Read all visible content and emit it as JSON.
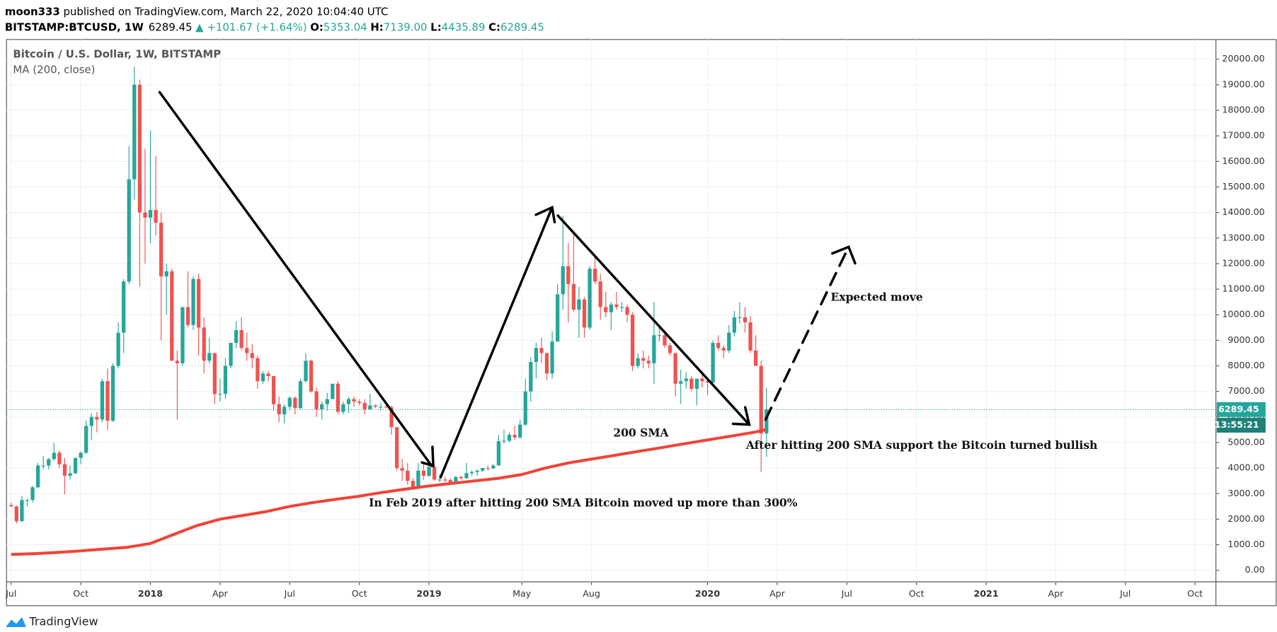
{
  "header": {
    "publisher": "moon333",
    "published": "published on TradingView.com, March 22, 2020 10:04:40 UTC",
    "symbol": "BITSTAMP:BTCUSD, 1W",
    "last": "6289.45",
    "change": "▲ +101.67 (+1.64%)",
    "ohlc": [
      {
        "label": "O:",
        "value": "5353.04"
      },
      {
        "label": "H:",
        "value": "7139.00"
      },
      {
        "label": "L:",
        "value": "4435.89"
      },
      {
        "label": "C:",
        "value": "6289.45"
      }
    ]
  },
  "footer": {
    "brand": "TradingView"
  },
  "chart_data": {
    "type": "candlestick",
    "title": "Bitcoin / U.S. Dollar, 1W, BITSTAMP",
    "indicator": "MA (200, close)",
    "up_color": "#26a69a",
    "down_color": "#ef5350",
    "grid": true,
    "xlim": [
      -0.2,
      51.9
    ],
    "xticks": [
      {
        "value": 0,
        "label": "Jul"
      },
      {
        "value": 3,
        "label": "Oct"
      },
      {
        "value": 6,
        "label": "2018"
      },
      {
        "value": 9,
        "label": "Apr"
      },
      {
        "value": 12,
        "label": "Jul"
      },
      {
        "value": 15,
        "label": "Oct"
      },
      {
        "value": 18,
        "label": "2019"
      },
      {
        "value": 22,
        "label": "May"
      },
      {
        "value": 25,
        "label": "Aug"
      },
      {
        "value": 30,
        "label": "2020"
      },
      {
        "value": 33,
        "label": "Apr"
      },
      {
        "value": 36,
        "label": "Jul"
      },
      {
        "value": 39,
        "label": "Oct"
      },
      {
        "value": 42,
        "label": "2021"
      },
      {
        "value": 45,
        "label": "Apr"
      },
      {
        "value": 48,
        "label": "Jul"
      },
      {
        "value": 51,
        "label": "Oct"
      }
    ],
    "ylim": [
      -450,
      20770
    ],
    "yticks": [
      {
        "value": 0,
        "label": "0.00"
      },
      {
        "value": 1000,
        "label": "1000.00"
      },
      {
        "value": 2000,
        "label": "2000.00"
      },
      {
        "value": 3000,
        "label": "3000.00"
      },
      {
        "value": 4000,
        "label": "4000.00"
      },
      {
        "value": 5000,
        "label": "5000.00"
      },
      {
        "value": 6000,
        "label": "6000.00"
      },
      {
        "value": 7000,
        "label": "7000.00"
      },
      {
        "value": 8000,
        "label": "8000.00"
      },
      {
        "value": 9000,
        "label": "9000.00"
      },
      {
        "value": 10000,
        "label": "10000.00"
      },
      {
        "value": 11000,
        "label": "11000.00"
      },
      {
        "value": 12000,
        "label": "12000.00"
      },
      {
        "value": 13000,
        "label": "13000.00"
      },
      {
        "value": 14000,
        "label": "14000.00"
      },
      {
        "value": 15000,
        "label": "15000.00"
      },
      {
        "value": 16000,
        "label": "16000.00"
      },
      {
        "value": 17000,
        "label": "17000.00"
      },
      {
        "value": 18000,
        "label": "18000.00"
      },
      {
        "value": 19000,
        "label": "19000.00"
      },
      {
        "value": 20000,
        "label": "20000.00"
      }
    ],
    "last_price": 6289.45,
    "countdown": "13:55:21",
    "ohlc": [
      [
        2550,
        2650,
        2480,
        2500
      ],
      [
        2500,
        2530,
        1830,
        1920
      ],
      [
        1920,
        2900,
        1900,
        2750
      ],
      [
        2750,
        2800,
        2500,
        2750
      ],
      [
        2750,
        3300,
        2650,
        3250
      ],
      [
        3250,
        4200,
        3200,
        4100
      ],
      [
        4100,
        4480,
        3950,
        4100
      ],
      [
        4100,
        4400,
        3950,
        4350
      ],
      [
        4350,
        4980,
        4300,
        4600
      ],
      [
        4600,
        4700,
        4000,
        4150
      ],
      [
        4150,
        4400,
        2970,
        3700
      ],
      [
        3700,
        4100,
        3550,
        3800
      ],
      [
        3800,
        4400,
        3750,
        4400
      ],
      [
        4400,
        4650,
        4150,
        4600
      ],
      [
        4600,
        5850,
        4550,
        5650
      ],
      [
        5650,
        6150,
        5100,
        6000
      ],
      [
        6000,
        6200,
        5400,
        5900
      ],
      [
        5900,
        7500,
        5800,
        7400
      ],
      [
        7400,
        7900,
        5500,
        5850
      ],
      [
        5850,
        8100,
        5800,
        8000
      ],
      [
        8000,
        9700,
        7900,
        9300
      ],
      [
        9300,
        11400,
        8500,
        11300
      ],
      [
        11300,
        16600,
        11200,
        15300
      ],
      [
        15300,
        19700,
        14500,
        19000
      ],
      [
        19000,
        19200,
        11100,
        14000
      ],
      [
        14000,
        16500,
        12000,
        13800
      ],
      [
        13800,
        17200,
        12800,
        14100
      ],
      [
        14100,
        16200,
        13100,
        13600
      ],
      [
        13600,
        14000,
        9000,
        11500
      ],
      [
        11500,
        12000,
        10000,
        11700
      ],
      [
        11700,
        11800,
        8200,
        8200
      ],
      [
        8200,
        8600,
        5900,
        8100
      ],
      [
        8100,
        10300,
        8000,
        10300
      ],
      [
        10300,
        11700,
        9500,
        9600
      ],
      [
        9600,
        11500,
        9400,
        11400
      ],
      [
        11400,
        11600,
        8400,
        9500
      ],
      [
        9500,
        9900,
        7700,
        8200
      ],
      [
        8200,
        9100,
        8100,
        8500
      ],
      [
        8500,
        8500,
        6500,
        6900
      ],
      [
        6900,
        7500,
        6600,
        6900
      ],
      [
        6900,
        8300,
        6700,
        8000
      ],
      [
        8000,
        8900,
        7900,
        8900
      ],
      [
        8900,
        9750,
        8700,
        9400
      ],
      [
        9400,
        9900,
        8600,
        8700
      ],
      [
        8700,
        9300,
        8200,
        8500
      ],
      [
        8500,
        8850,
        7900,
        8300
      ],
      [
        8300,
        8400,
        7100,
        7400
      ],
      [
        7400,
        7800,
        7300,
        7700
      ],
      [
        7700,
        7800,
        7400,
        7600
      ],
      [
        7600,
        7600,
        6250,
        6500
      ],
      [
        6500,
        6800,
        5800,
        6100
      ],
      [
        6100,
        6500,
        5750,
        6400
      ],
      [
        6400,
        6800,
        6300,
        6750
      ],
      [
        6750,
        6800,
        6100,
        6350
      ],
      [
        6350,
        7500,
        6300,
        7400
      ],
      [
        7400,
        8500,
        7350,
        8200
      ],
      [
        8200,
        8250,
        6950,
        7000
      ],
      [
        7000,
        7150,
        6000,
        6300
      ],
      [
        6300,
        6600,
        5900,
        6500
      ],
      [
        6500,
        6950,
        6250,
        6700
      ],
      [
        6700,
        7300,
        6700,
        7300
      ],
      [
        7300,
        7400,
        6100,
        6200
      ],
      [
        6200,
        6600,
        6100,
        6500
      ],
      [
        6500,
        6800,
        6150,
        6700
      ],
      [
        6700,
        6800,
        6400,
        6600
      ],
      [
        6600,
        6700,
        6450,
        6550
      ],
      [
        6550,
        6700,
        6100,
        6300
      ],
      [
        6300,
        6900,
        6300,
        6450
      ],
      [
        6450,
        6500,
        6350,
        6400
      ],
      [
        6400,
        6550,
        6250,
        6400
      ],
      [
        6400,
        6550,
        6350,
        6380
      ],
      [
        6380,
        6450,
        5300,
        5600
      ],
      [
        5600,
        5600,
        3900,
        4000
      ],
      [
        4000,
        4350,
        3500,
        3900
      ],
      [
        3900,
        4200,
        3350,
        3500
      ],
      [
        3500,
        3600,
        3150,
        3250
      ],
      [
        3250,
        4200,
        3250,
        3900
      ],
      [
        3900,
        4250,
        3550,
        3700
      ],
      [
        3700,
        4100,
        3650,
        4050
      ],
      [
        4050,
        4100,
        3500,
        3550
      ],
      [
        3550,
        3750,
        3450,
        3550
      ],
      [
        3550,
        3650,
        3450,
        3530
      ],
      [
        3530,
        3600,
        3350,
        3400
      ],
      [
        3400,
        3700,
        3380,
        3650
      ],
      [
        3650,
        3700,
        3550,
        3600
      ],
      [
        3600,
        4200,
        3580,
        3800
      ],
      [
        3800,
        3900,
        3700,
        3850
      ],
      [
        3850,
        3950,
        3700,
        3900
      ],
      [
        3900,
        4000,
        3850,
        4000
      ],
      [
        4000,
        4100,
        3900,
        3990
      ],
      [
        3990,
        4150,
        3950,
        4100
      ],
      [
        4100,
        5300,
        4100,
        5050
      ],
      [
        5050,
        5500,
        4950,
        5070
      ],
      [
        5070,
        5400,
        5000,
        5300
      ],
      [
        5300,
        5650,
        5100,
        5200
      ],
      [
        5200,
        5900,
        5150,
        5700
      ],
      [
        5700,
        7500,
        5650,
        7000
      ],
      [
        7000,
        8350,
        6600,
        8150
      ],
      [
        8150,
        8900,
        7500,
        8700
      ],
      [
        8700,
        9100,
        8100,
        8500
      ],
      [
        8500,
        8500,
        7450,
        7700
      ],
      [
        7700,
        9350,
        7500,
        8950
      ],
      [
        8950,
        11200,
        8950,
        10800
      ],
      [
        10800,
        13880,
        10200,
        11900
      ],
      [
        11900,
        12800,
        9700,
        11200
      ],
      [
        11200,
        13200,
        10100,
        10200
      ],
      [
        10200,
        11100,
        9100,
        10600
      ],
      [
        10600,
        10700,
        9100,
        9500
      ],
      [
        9500,
        11900,
        9400,
        11800
      ],
      [
        11800,
        12350,
        11200,
        11300
      ],
      [
        11300,
        11600,
        9800,
        10300
      ],
      [
        10300,
        10900,
        9900,
        10100
      ],
      [
        10100,
        10500,
        9400,
        10400
      ],
      [
        10400,
        10900,
        10200,
        10300
      ],
      [
        10300,
        10500,
        10100,
        10300
      ],
      [
        10300,
        10400,
        9700,
        10000
      ],
      [
        10000,
        10100,
        7800,
        8000
      ],
      [
        8000,
        8500,
        7900,
        8300
      ],
      [
        8300,
        8600,
        7900,
        8200
      ],
      [
        8200,
        8400,
        7900,
        8100
      ],
      [
        8100,
        10500,
        7300,
        9200
      ],
      [
        9200,
        9500,
        8950,
        9200
      ],
      [
        9200,
        9400,
        8700,
        8800
      ],
      [
        8800,
        8900,
        8400,
        8500
      ],
      [
        8500,
        8500,
        6800,
        7300
      ],
      [
        7300,
        7850,
        6500,
        7400
      ],
      [
        7400,
        7750,
        7100,
        7500
      ],
      [
        7500,
        7600,
        7000,
        7100
      ],
      [
        7100,
        7500,
        6450,
        7500
      ],
      [
        7500,
        7700,
        7150,
        7400
      ],
      [
        7400,
        7550,
        6850,
        7350
      ],
      [
        7350,
        9000,
        7300,
        8900
      ],
      [
        8900,
        9200,
        8600,
        8700
      ],
      [
        8700,
        8800,
        8300,
        8600
      ],
      [
        8600,
        9600,
        8500,
        9300
      ],
      [
        9300,
        10150,
        9150,
        9900
      ],
      [
        9900,
        10500,
        9650,
        9900
      ],
      [
        9900,
        10300,
        9300,
        9700
      ],
      [
        9700,
        9950,
        8500,
        8600
      ],
      [
        8600,
        9200,
        8000,
        8000
      ],
      [
        8000,
        8200,
        3850,
        5350
      ],
      [
        5353.04,
        7139,
        4435.89,
        6289.45
      ]
    ],
    "ma": {
      "name": "MA (200, close)",
      "color": "#f04438",
      "x": [
        0,
        1,
        2,
        3,
        4,
        5,
        6,
        7,
        8,
        9,
        10,
        11,
        12,
        13,
        14,
        15,
        16,
        17,
        18,
        19,
        20,
        21,
        22,
        23,
        24,
        25,
        26,
        27,
        28,
        29,
        30,
        31,
        32,
        32.5
      ],
      "values": [
        620,
        650,
        700,
        760,
        830,
        900,
        1050,
        1400,
        1750,
        2000,
        2150,
        2300,
        2500,
        2650,
        2780,
        2900,
        3050,
        3180,
        3300,
        3400,
        3500,
        3600,
        3750,
        4000,
        4200,
        4350,
        4500,
        4650,
        4800,
        4950,
        5100,
        5250,
        5400,
        5500
      ]
    },
    "annotations": [
      "In Feb 2019 after hitting 200 SMA Bitcoin moved up more than 300%",
      "200 SMA",
      "After hitting 200 SMA support the Bitcoin turned bullish",
      "Expected move"
    ]
  }
}
